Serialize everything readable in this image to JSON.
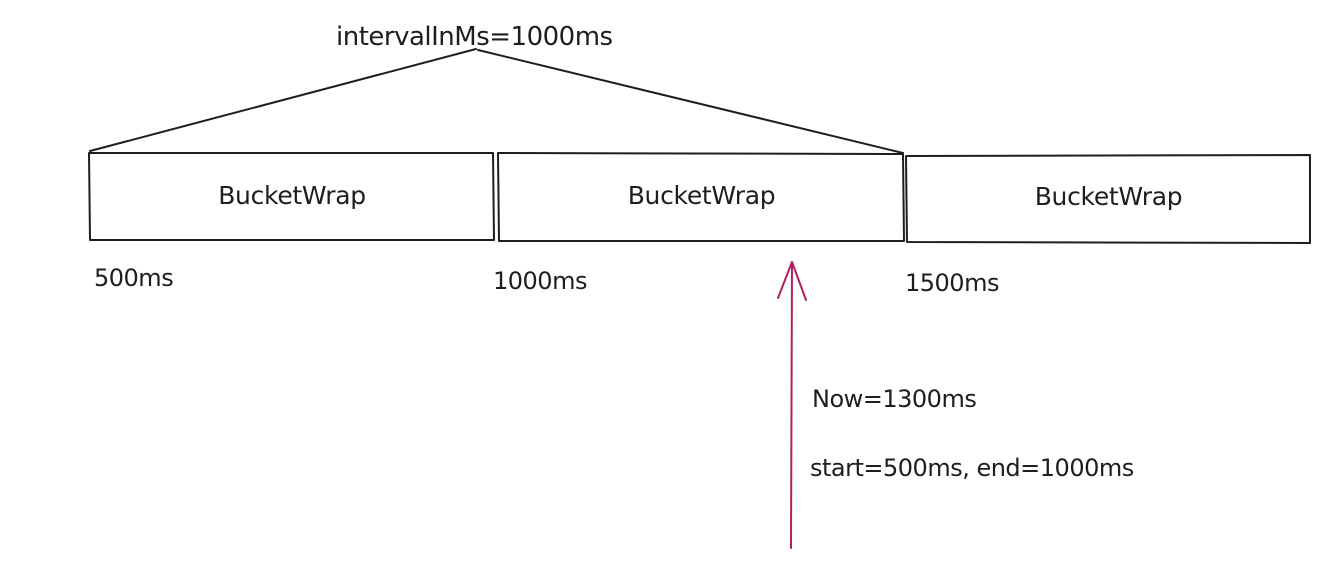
{
  "title": "intervalInMs=1000ms",
  "buckets": [
    {
      "label": "BucketWrap"
    },
    {
      "label": "BucketWrap"
    },
    {
      "label": "BucketWrap"
    }
  ],
  "ticks": [
    "500ms",
    "1000ms",
    "1500ms"
  ],
  "annotation": {
    "now": "Now=1300ms",
    "range": "start=500ms, end=1000ms"
  },
  "colors": {
    "stroke": "#1e1e1e",
    "arrow": "#b0205e",
    "background": "#ffffff"
  }
}
